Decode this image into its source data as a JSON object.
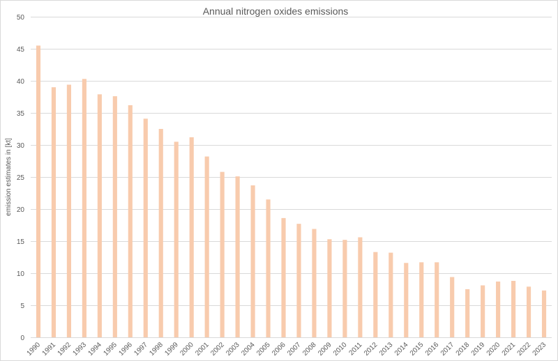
{
  "chart_data": {
    "type": "bar",
    "title": "Annual nitrogen oxides emissions",
    "xlabel": "",
    "ylabel": "emission estimates in [kt]",
    "ylim": [
      0,
      50
    ],
    "yticks": [
      0,
      5,
      10,
      15,
      20,
      25,
      30,
      35,
      40,
      45,
      50
    ],
    "grid": true,
    "legend": "none",
    "bar_color": "#f8cbad",
    "categories": [
      "1990",
      "1991",
      "1992",
      "1993",
      "1994",
      "1995",
      "1996",
      "1997",
      "1998",
      "1999",
      "2000",
      "2001",
      "2002",
      "2003",
      "2004",
      "2005",
      "2006",
      "2007",
      "2008",
      "2009",
      "2010",
      "2011",
      "2012",
      "2013",
      "2014",
      "2015",
      "2016",
      "2017",
      "2018",
      "2019",
      "2020",
      "2021",
      "2022",
      "2023"
    ],
    "values": [
      45.5,
      39.0,
      39.4,
      40.3,
      37.9,
      37.6,
      36.2,
      34.1,
      32.5,
      30.5,
      31.2,
      28.2,
      25.8,
      25.1,
      23.7,
      21.5,
      18.6,
      17.7,
      16.9,
      15.3,
      15.2,
      15.6,
      13.3,
      13.2,
      11.6,
      11.7,
      11.7,
      9.4,
      7.5,
      8.1,
      8.7,
      8.8,
      7.9,
      7.3
    ]
  }
}
